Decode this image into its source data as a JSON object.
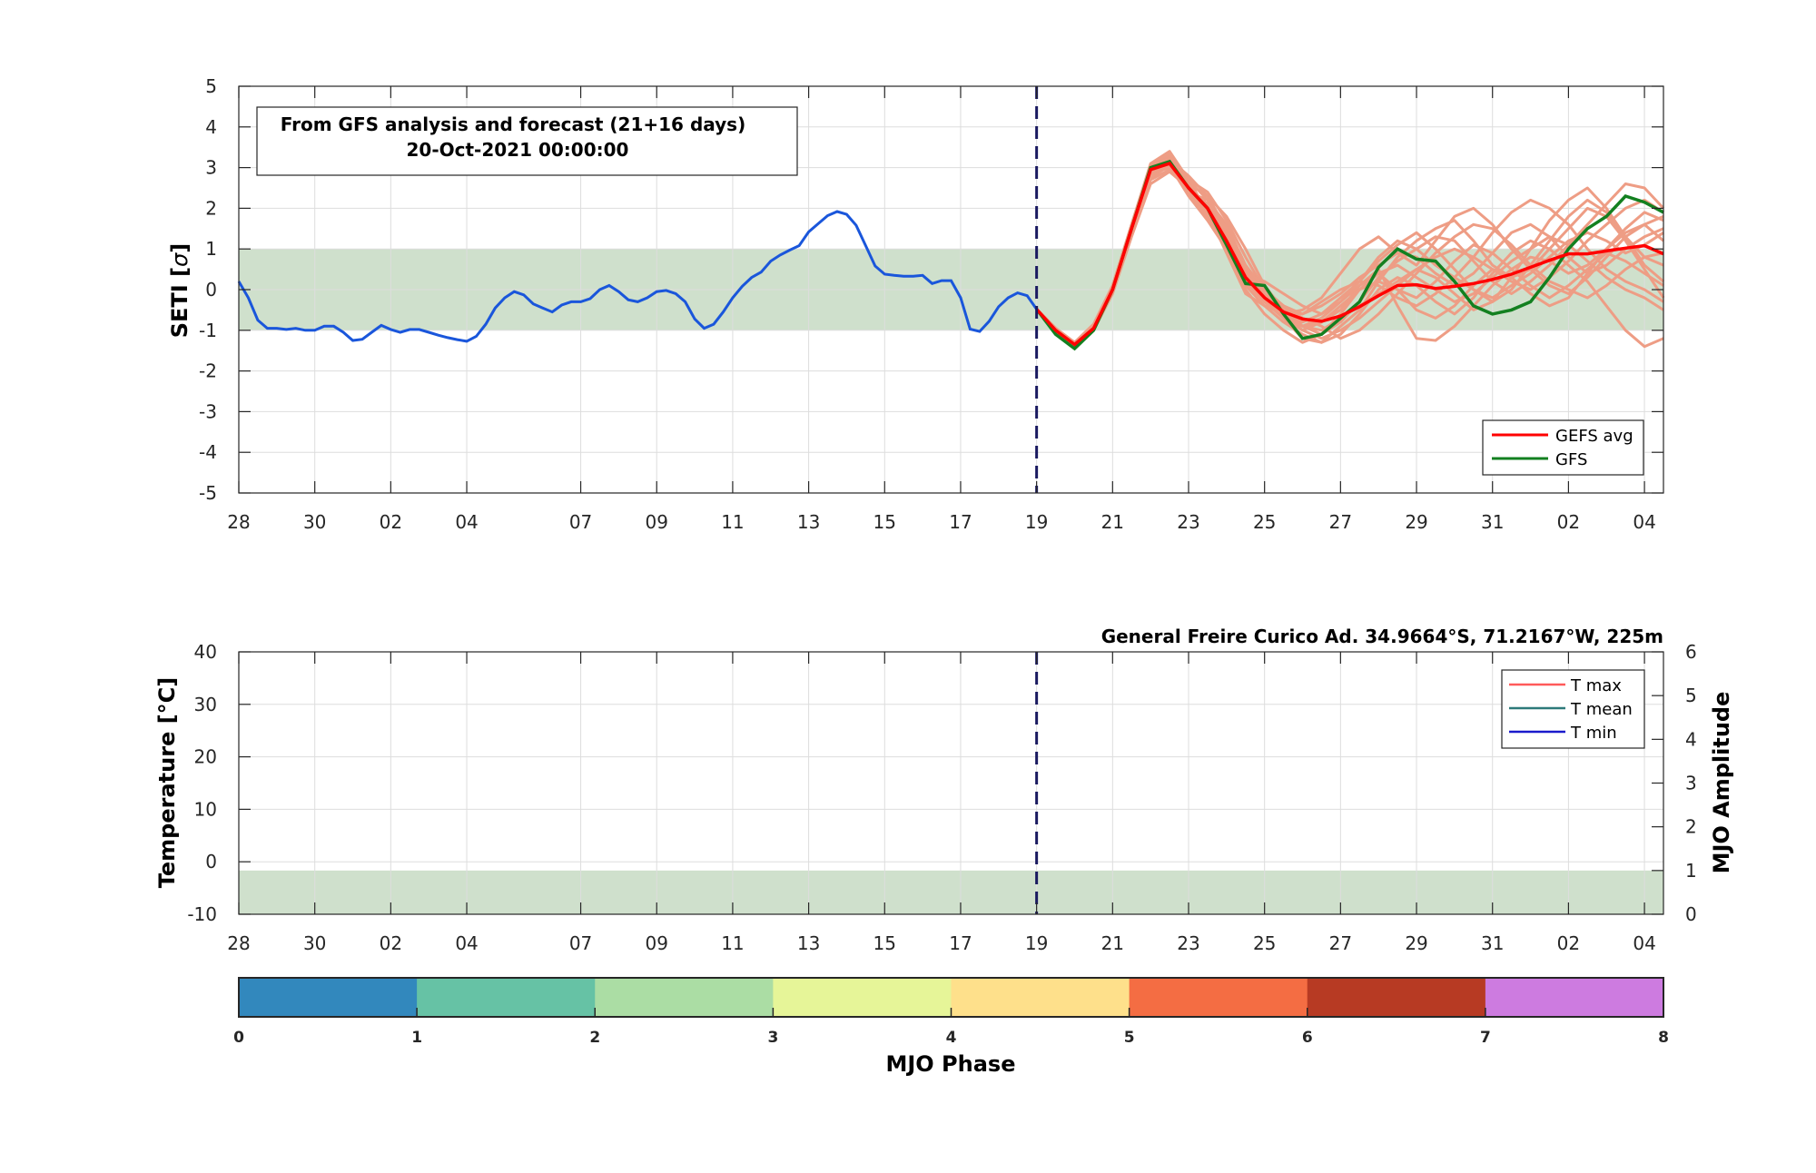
{
  "chart_data": [
    {
      "type": "line",
      "annotation": {
        "line1": "From GFS analysis and forecast (21+16 days)",
        "line2": "20-Oct-2021 00:00:00"
      },
      "ylabel_main": "SETI [",
      "ylabel_sigma": "σ",
      "ylabel_close": "]",
      "ylim": [
        -5,
        5
      ],
      "yticks": [
        "5",
        "4",
        "3",
        "2",
        "1",
        "0",
        "-1",
        "-2",
        "-3",
        "-4",
        "-5"
      ],
      "xlim": [
        0,
        37.5
      ],
      "x_units": "days since 28-Sep-2021",
      "xtick_positions": [
        0,
        2,
        4,
        6,
        9,
        11,
        13,
        15,
        17,
        19,
        21,
        23,
        25,
        27,
        29,
        31,
        33,
        35,
        37
      ],
      "xtick_labels": [
        "28",
        "30",
        "02",
        "04",
        "07",
        "09",
        "11",
        "13",
        "15",
        "17",
        "19",
        "21",
        "23",
        "25",
        "27",
        "29",
        "31",
        "02",
        "04"
      ],
      "band": [
        -1,
        1
      ],
      "forecast_start": 21,
      "grid": true,
      "legend_position": "bottom-right",
      "legend": [
        "GEFS avg",
        "GFS"
      ],
      "colors": {
        "analysis": "#1a56db",
        "gefs_avg": "#ff0000",
        "gfs": "#138020",
        "members": "#ee9d85",
        "band": "#cfe0cc",
        "vline": "#1a1a60"
      },
      "analysis": {
        "x": [
          0,
          0.25,
          0.5,
          0.75,
          1,
          1.25,
          1.5,
          1.75,
          2,
          2.25,
          2.5,
          2.75,
          3,
          3.25,
          3.5,
          3.75,
          4,
          4.25,
          4.5,
          4.75,
          5,
          5.25,
          5.5,
          5.75,
          6,
          6.25,
          6.5,
          6.75,
          7,
          7.25,
          7.5,
          7.75,
          8,
          8.25,
          8.5,
          8.75,
          9,
          9.25,
          9.5,
          9.75,
          10,
          10.25,
          10.5,
          10.75,
          11,
          11.25,
          11.5,
          11.75,
          12,
          12.25,
          12.5,
          12.75,
          13,
          13.25,
          13.5,
          13.75,
          14,
          14.25,
          14.5,
          14.75,
          15,
          15.25,
          15.5,
          15.75,
          16,
          16.25,
          16.5,
          16.75,
          17,
          17.25,
          17.5,
          17.75,
          18,
          18.25,
          18.5,
          18.75,
          19,
          19.25,
          19.5,
          19.75,
          20,
          20.25,
          20.5,
          20.75,
          21
        ],
        "y": [
          0.2,
          -0.2,
          -0.75,
          -0.95,
          -0.95,
          -0.98,
          -0.95,
          -1.0,
          -1.0,
          -0.9,
          -0.9,
          -1.05,
          -1.25,
          -1.22,
          -1.05,
          -0.88,
          -0.98,
          -1.05,
          -0.98,
          -0.98,
          -1.05,
          -1.12,
          -1.18,
          -1.23,
          -1.27,
          -1.15,
          -0.85,
          -0.45,
          -0.2,
          -0.05,
          -0.13,
          -0.35,
          -0.45,
          -0.55,
          -0.38,
          -0.3,
          -0.3,
          -0.22,
          -0.0,
          0.1,
          -0.05,
          -0.25,
          -0.3,
          -0.2,
          -0.05,
          -0.02,
          -0.1,
          -0.3,
          -0.72,
          -0.95,
          -0.85,
          -0.55,
          -0.2,
          0.08,
          0.3,
          0.43,
          0.7,
          0.85,
          0.97,
          1.08,
          1.42,
          1.62,
          1.82,
          1.92,
          1.85,
          1.58,
          1.08,
          0.58,
          0.38,
          0.35,
          0.33,
          0.33,
          0.35,
          0.15,
          0.22,
          0.22,
          -0.2,
          -0.97,
          -1.03,
          -0.78,
          -0.42,
          -0.2,
          -0.08,
          -0.15,
          -0.48
        ]
      },
      "gefs_avg": {
        "x": [
          21,
          21.5,
          22,
          22.5,
          23,
          23.5,
          24,
          24.5,
          25,
          25.5,
          26,
          26.5,
          27,
          27.5,
          28,
          28.5,
          29,
          29.5,
          30,
          30.5,
          31,
          31.5,
          32,
          32.5,
          33,
          33.5,
          34,
          34.5,
          35,
          35.5,
          36,
          36.5,
          37,
          37.5
        ],
        "y": [
          -0.48,
          -1.0,
          -1.35,
          -0.95,
          0.0,
          1.5,
          2.95,
          3.1,
          2.5,
          2.0,
          1.2,
          0.3,
          -0.2,
          -0.55,
          -0.72,
          -0.78,
          -0.65,
          -0.42,
          -0.15,
          0.1,
          0.12,
          0.03,
          0.08,
          0.15,
          0.25,
          0.38,
          0.55,
          0.72,
          0.88,
          0.88,
          0.95,
          1.02,
          1.08,
          0.88
        ]
      },
      "gfs": {
        "x": [
          21,
          21.5,
          22,
          22.5,
          23,
          23.5,
          24,
          24.5,
          25,
          25.5,
          26,
          26.5,
          27,
          27.5,
          28,
          28.5,
          29,
          29.5,
          30,
          30.5,
          31,
          31.5,
          32,
          32.5,
          33,
          33.5,
          34,
          34.5,
          35,
          35.5,
          36,
          36.5,
          37,
          37.5
        ],
        "y": [
          -0.48,
          -1.1,
          -1.45,
          -1.0,
          0.0,
          1.5,
          3.0,
          3.15,
          2.5,
          2.0,
          1.1,
          0.15,
          0.1,
          -0.6,
          -1.2,
          -1.1,
          -0.7,
          -0.3,
          0.55,
          1.0,
          0.75,
          0.7,
          0.2,
          -0.4,
          -0.6,
          -0.5,
          -0.3,
          0.3,
          1.0,
          1.5,
          1.8,
          2.3,
          2.15,
          1.9
        ]
      },
      "members_x": [
        21,
        21.5,
        22,
        22.5,
        23,
        23.5,
        24,
        24.5,
        25,
        25.5,
        26,
        26.5,
        27,
        27.5,
        28,
        28.5,
        29,
        29.5,
        30,
        30.5,
        31,
        31.5,
        32,
        32.5,
        33,
        33.5,
        34,
        34.5,
        35,
        35.5,
        36,
        36.5,
        37,
        37.5
      ],
      "members_y": [
        [
          -0.48,
          -1.05,
          -1.35,
          -0.9,
          0.05,
          1.55,
          3.0,
          3.3,
          2.6,
          2.0,
          1.0,
          0.1,
          -0.4,
          -0.8,
          -1.1,
          -1.3,
          -0.9,
          -0.5,
          0.2,
          0.8,
          1.2,
          1.5,
          1.7,
          1.2,
          0.6,
          0.3,
          0.5,
          1.0,
          1.5,
          2.0,
          1.8,
          1.2,
          0.5,
          -0.2
        ],
        [
          -0.48,
          -0.95,
          -1.3,
          -0.9,
          0.0,
          1.4,
          2.8,
          3.1,
          2.4,
          2.2,
          1.6,
          0.6,
          -0.1,
          -0.4,
          -0.9,
          -1.0,
          -0.7,
          -0.4,
          -0.1,
          0.2,
          0.5,
          0.3,
          -0.1,
          -0.5,
          -0.3,
          0.3,
          1.0,
          1.7,
          2.2,
          2.5,
          2.0,
          1.3,
          0.6,
          0.2
        ],
        [
          -0.48,
          -1.0,
          -1.4,
          -1.0,
          -0.1,
          1.3,
          2.6,
          2.9,
          2.5,
          2.1,
          1.3,
          0.4,
          -0.3,
          -0.7,
          -1.0,
          -0.8,
          -0.5,
          0.1,
          0.5,
          -0.4,
          -1.2,
          -1.25,
          -0.9,
          -0.4,
          0.1,
          0.5,
          0.8,
          0.7,
          0.4,
          0.6,
          1.0,
          1.4,
          1.6,
          1.2
        ],
        [
          -0.48,
          -1.0,
          -1.3,
          -0.85,
          0.1,
          1.6,
          3.1,
          3.4,
          2.7,
          1.9,
          0.9,
          -0.1,
          -0.4,
          -0.6,
          -0.5,
          -0.2,
          0.4,
          1.0,
          1.3,
          0.9,
          0.6,
          1.2,
          1.8,
          2.0,
          1.6,
          1.0,
          0.5,
          0.1,
          -0.1,
          0.3,
          0.8,
          1.3,
          1.6,
          1.8
        ],
        [
          -0.48,
          -1.05,
          -1.45,
          -1.0,
          0.0,
          1.5,
          2.9,
          3.2,
          2.8,
          2.3,
          1.5,
          0.5,
          -0.2,
          -0.7,
          -1.2,
          -1.3,
          -1.1,
          -0.6,
          0.0,
          0.3,
          0.1,
          -0.3,
          -0.6,
          -0.2,
          0.4,
          0.9,
          1.2,
          1.0,
          0.6,
          0.2,
          -0.4,
          -1.0,
          -1.4,
          -1.2
        ],
        [
          -0.48,
          -0.95,
          -1.3,
          -0.9,
          0.05,
          1.5,
          2.9,
          3.05,
          2.3,
          1.7,
          1.0,
          0.2,
          -0.3,
          -0.5,
          -0.6,
          -0.3,
          0.0,
          0.2,
          0.1,
          -0.2,
          -0.4,
          -0.1,
          0.3,
          0.8,
          1.4,
          1.9,
          2.2,
          2.0,
          1.6,
          1.0,
          0.5,
          0.2,
          0.0,
          -0.3
        ],
        [
          -0.48,
          -1.0,
          -1.35,
          -0.95,
          0.0,
          1.45,
          2.85,
          3.0,
          2.6,
          2.3,
          1.8,
          1.0,
          0.1,
          -0.5,
          -0.9,
          -1.1,
          -0.8,
          -0.3,
          0.3,
          0.7,
          1.0,
          1.3,
          1.2,
          0.7,
          0.2,
          -0.1,
          0.2,
          0.6,
          1.1,
          1.6,
          2.1,
          2.6,
          2.5,
          2.0
        ],
        [
          -0.48,
          -1.05,
          -1.4,
          -0.95,
          0.05,
          1.55,
          2.95,
          3.25,
          2.5,
          1.9,
          1.1,
          0.3,
          -0.2,
          -0.6,
          -0.9,
          -0.7,
          -0.3,
          0.1,
          0.4,
          0.0,
          -0.5,
          -0.7,
          -0.4,
          0.1,
          0.5,
          0.3,
          -0.1,
          -0.4,
          -0.2,
          0.4,
          1.0,
          1.5,
          1.9,
          1.7
        ],
        [
          -0.48,
          -1.0,
          -1.3,
          -0.9,
          0.0,
          1.4,
          2.7,
          2.95,
          2.7,
          2.4,
          1.7,
          0.8,
          0.0,
          -0.4,
          -0.7,
          -0.9,
          -1.2,
          -1.0,
          -0.6,
          -0.1,
          0.4,
          0.9,
          1.3,
          1.6,
          1.5,
          1.1,
          0.6,
          0.2,
          0.0,
          -0.2,
          0.1,
          0.5,
          0.8,
          0.9
        ],
        [
          -0.48,
          -0.95,
          -1.35,
          -0.9,
          0.05,
          1.6,
          3.05,
          3.35,
          2.6,
          2.0,
          1.2,
          0.4,
          -0.1,
          -0.5,
          -0.8,
          -0.6,
          -0.2,
          0.2,
          0.7,
          1.1,
          1.4,
          1.0,
          0.5,
          0.0,
          -0.3,
          0.0,
          0.6,
          1.2,
          1.8,
          2.2,
          1.9,
          1.3,
          0.8,
          0.6
        ],
        [
          -0.48,
          -1.0,
          -1.45,
          -1.0,
          -0.05,
          1.4,
          2.75,
          3.05,
          2.4,
          1.8,
          1.0,
          0.0,
          -0.6,
          -1.0,
          -1.3,
          -1.1,
          -0.6,
          0.0,
          0.4,
          0.6,
          0.3,
          0.0,
          -0.3,
          -0.1,
          0.3,
          0.7,
          1.0,
          1.3,
          1.1,
          0.7,
          0.3,
          0.0,
          -0.2,
          -0.5
        ],
        [
          -0.48,
          -1.05,
          -1.3,
          -0.85,
          0.1,
          1.55,
          2.95,
          3.2,
          2.7,
          2.2,
          1.4,
          0.6,
          0.0,
          -0.4,
          -0.6,
          -0.4,
          -0.1,
          0.3,
          0.6,
          0.9,
          0.8,
          0.4,
          0.1,
          0.4,
          0.9,
          1.4,
          1.6,
          1.3,
          0.8,
          0.4,
          0.6,
          1.0,
          1.3,
          1.5
        ],
        [
          -0.48,
          -1.0,
          -1.35,
          -0.95,
          0.0,
          1.5,
          2.9,
          3.1,
          2.5,
          2.1,
          1.3,
          0.5,
          -0.1,
          -0.6,
          -1.0,
          -1.2,
          -1.0,
          -0.7,
          -0.3,
          0.1,
          0.5,
          0.8,
          1.0,
          0.8,
          0.5,
          0.2,
          0.0,
          0.3,
          0.7,
          1.2,
          1.6,
          2.0,
          2.2,
          1.9
        ],
        [
          -0.48,
          -0.95,
          -1.4,
          -0.95,
          0.0,
          1.45,
          2.8,
          3.15,
          2.6,
          2.0,
          1.1,
          0.2,
          -0.3,
          -0.7,
          -0.9,
          -0.8,
          -0.4,
          0.0,
          0.2,
          0.0,
          -0.2,
          0.2,
          0.7,
          1.1,
          0.9,
          0.5,
          0.1,
          -0.2,
          0.1,
          0.5,
          0.9,
          0.7,
          0.4,
          0.1
        ],
        [
          -0.48,
          -1.0,
          -1.35,
          -0.9,
          0.05,
          1.5,
          2.9,
          3.2,
          2.5,
          1.9,
          1.2,
          0.4,
          0.2,
          -0.1,
          -0.4,
          -0.6,
          -0.3,
          0.2,
          0.8,
          1.2,
          1.0,
          0.6,
          0.3,
          0.0,
          -0.2,
          0.1,
          0.4,
          0.8,
          1.2,
          1.4,
          1.2,
          0.9,
          1.1,
          1.4
        ]
      ]
    },
    {
      "type": "line",
      "title": "General Freire Curico Ad. 34.9664°S, 71.2167°W, 225m",
      "ylabel": "Temperature [°C]",
      "ylabel_right": "MJO Amplitude",
      "ylim": [
        -10,
        40
      ],
      "yticks": [
        "40",
        "30",
        "20",
        "10",
        "0",
        "-10"
      ],
      "ylim_right": [
        0,
        6
      ],
      "yticks_right": [
        "6",
        "5",
        "4",
        "3",
        "2",
        "1",
        "0"
      ],
      "band_right": [
        0,
        1
      ],
      "forecast_start": 21,
      "legend_position": "top-right",
      "legend": [
        "T max",
        "T mean",
        "T min"
      ],
      "colors": {
        "tmax": "#ff5a5a",
        "tmean": "#2d7a7a",
        "tmin": "#1a1acc"
      },
      "series": []
    },
    {
      "type": "colorbar",
      "xlabel": "MJO Phase",
      "ticks": [
        "0",
        "1",
        "2",
        "3",
        "4",
        "5",
        "6",
        "7",
        "8"
      ],
      "colors": [
        "#3288bd",
        "#66c2a5",
        "#abdda4",
        "#e6f598",
        "#fee08b",
        "#f46d43",
        "#b73a23",
        "#cd7be0"
      ]
    }
  ]
}
